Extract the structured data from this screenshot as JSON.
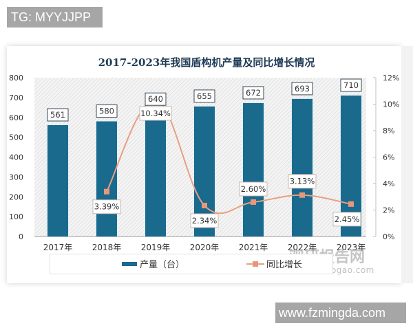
{
  "watermarks": {
    "top_left": "TG: MYYJJPP",
    "bottom_right": "www.fzmingda.com",
    "site_cn": "观研报告网",
    "site_en": "chinabaogao.com"
  },
  "chart_data": {
    "type": "bar",
    "title": "2017-2023年我国盾构机产量及同比增长情况",
    "categories": [
      "2017年",
      "2018年",
      "2019年",
      "2020年",
      "2021年",
      "2022年",
      "2023年"
    ],
    "series": [
      {
        "name": "产量（台）",
        "type": "bar",
        "axis": "left",
        "color": "#1a6a8e",
        "values": [
          561,
          580,
          640,
          655,
          672,
          693,
          710
        ],
        "labels": [
          "561",
          "580",
          "640",
          "655",
          "672",
          "693",
          "710"
        ]
      },
      {
        "name": "同比增长",
        "type": "line",
        "axis": "right",
        "color": "#e8a080",
        "values": [
          null,
          3.39,
          10.34,
          2.34,
          2.6,
          3.13,
          2.45
        ],
        "labels": [
          "",
          "3.39%",
          "10.34%",
          "2.34%",
          "2.60%",
          "3.13%",
          "2.45%"
        ]
      }
    ],
    "left_axis": {
      "ylim": [
        0,
        800
      ],
      "ticks": [
        "0",
        "100",
        "200",
        "300",
        "400",
        "500",
        "600",
        "700",
        "800"
      ]
    },
    "right_axis": {
      "ylim": [
        0,
        12
      ],
      "ticks": [
        "0%",
        "2%",
        "4%",
        "6%",
        "8%",
        "10%",
        "12%"
      ]
    },
    "xlabel": "",
    "ylabel": "",
    "legend": {
      "position": "bottom",
      "entries": [
        "产量（台）",
        "同比增长"
      ]
    },
    "grid": false
  }
}
